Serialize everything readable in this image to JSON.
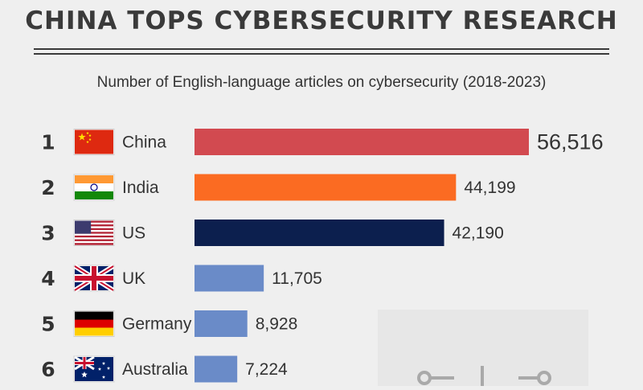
{
  "title": "CHINA TOPS CYBERSECURITY RESEARCH",
  "subtitle": "Number of English-language articles on cybersecurity (2018-2023)",
  "chart_data": {
    "type": "bar",
    "orientation": "horizontal",
    "categories": [
      "China",
      "India",
      "US",
      "UK",
      "Germany",
      "Australia"
    ],
    "values": [
      56516,
      44199,
      42190,
      11705,
      8928,
      7224
    ],
    "value_labels": [
      "56,516",
      "44,199",
      "42,190",
      "11,705",
      "8,928",
      "7,224"
    ],
    "ranks": [
      "1",
      "2",
      "3",
      "4",
      "5",
      "6"
    ],
    "flags": [
      "china-flag",
      "india-flag",
      "us-flag",
      "uk-flag",
      "germany-flag",
      "australia-flag"
    ],
    "colors": [
      "#d24a50",
      "#fb6b22",
      "#0c1f4e",
      "#6a8bc8",
      "#6a8bc8",
      "#6a8bc8"
    ],
    "xlim": [
      0,
      56516
    ],
    "grid": false,
    "legend": "none"
  }
}
